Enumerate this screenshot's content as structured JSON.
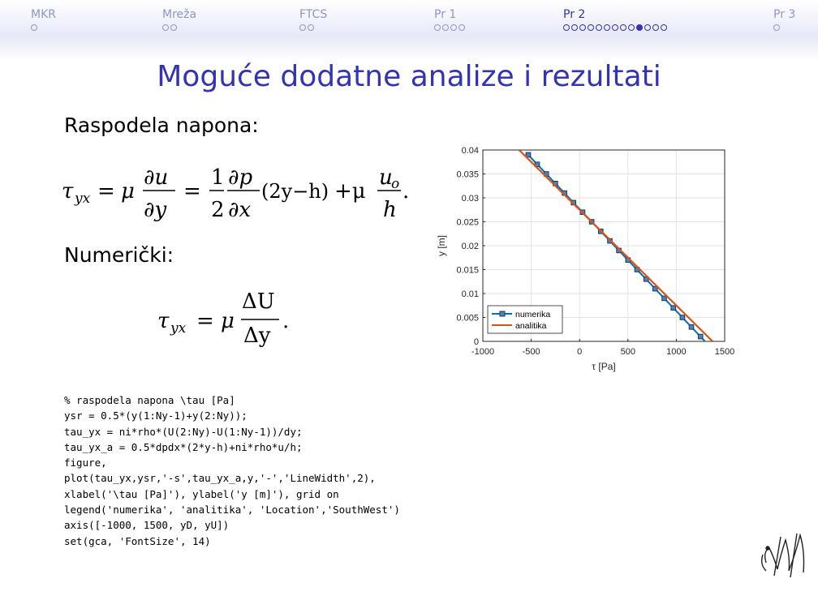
{
  "nav": {
    "sections": [
      {
        "title": "MKR",
        "dots": 1,
        "filled": -1,
        "active": false
      },
      {
        "title": "Mreža",
        "dots": 2,
        "filled": -1,
        "active": false
      },
      {
        "title": "FTCS",
        "dots": 2,
        "filled": -1,
        "active": false
      },
      {
        "title": "Pr 1",
        "dots": 4,
        "filled": -1,
        "active": false
      },
      {
        "title": "Pr 2",
        "dots": 13,
        "filled": 9,
        "active": true
      },
      {
        "title": "Pr 3",
        "dots": 1,
        "filled": -1,
        "active": false
      }
    ]
  },
  "slide": {
    "title": "Moguće dodatne analize i rezultati",
    "heading1": "Raspodela napona:",
    "heading2": "Numerički:",
    "eq1": {
      "tau": "τ",
      "tau_sub": "yx",
      "mu": "μ",
      "d1": "∂u",
      "d2": "∂y",
      "half_num": "1",
      "half_den": "2",
      "dp": "∂p",
      "dx": "∂x",
      "paren": "(2y−h)",
      "plus_mu": "+μ",
      "uo_num": "u",
      "uo_sub": "o",
      "uo_den": "h",
      "end": "."
    },
    "eq2": {
      "tau": "τ",
      "tau_sub": "yx",
      "mu": "μ",
      "num": "ΔU",
      "den": "Δy",
      "end": "."
    },
    "code": [
      "% raspodela napona \\tau [Pa]",
      "ysr = 0.5*(y(1:Ny-1)+y(2:Ny));",
      "tau_yx = ni*rho*(U(2:Ny)-U(1:Ny-1))/dy;",
      "tau_yx_a = 0.5*dpdx*(2*y-h)+ni*rho*u/h;",
      "figure,",
      "plot(tau_yx,ysr,'-s',tau_yx_a,y,'-','LineWidth',2),",
      "xlabel('\\tau [Pa]'), ylabel('y [m]'), grid on",
      "legend('numerika', 'analitika', 'Location','SouthWest')",
      "axis([-1000, 1500, yD, yU])",
      "set(gca, 'FontSize', 14)"
    ]
  },
  "chart_data": {
    "type": "line",
    "xlabel": "τ [Pa]",
    "ylabel": "y [m]",
    "xlim": [
      -1000,
      1500
    ],
    "ylim": [
      0,
      0.04
    ],
    "xticks": [
      "-1000",
      "-500",
      "0",
      "500",
      "1000",
      "1500"
    ],
    "yticks": [
      "0",
      "0.005",
      "0.01",
      "0.015",
      "0.02",
      "0.025",
      "0.03",
      "0.035",
      "0.04"
    ],
    "grid": true,
    "legend_position": "bottom-left",
    "series": [
      {
        "name": "numerika",
        "color": "#0072bd",
        "marker": "square",
        "x": [
          -531,
          -438,
          -344,
          -250,
          -156,
          -63,
          31,
          125,
          219,
          313,
          406,
          500,
          594,
          688,
          781,
          875,
          969,
          1063,
          1156,
          1250,
          1344
        ],
        "y": [
          0.039,
          0.037,
          0.035,
          0.033,
          0.031,
          0.029,
          0.027,
          0.025,
          0.023,
          0.021,
          0.019,
          0.017,
          0.015,
          0.013,
          0.011,
          0.009,
          0.007,
          0.005,
          0.003,
          0.001,
          -0.001
        ]
      },
      {
        "name": "analitika",
        "color": "#d95319",
        "x": [
          -625,
          1375
        ],
        "y": [
          0.04,
          0.0
        ]
      }
    ]
  },
  "logo_text": "MM"
}
